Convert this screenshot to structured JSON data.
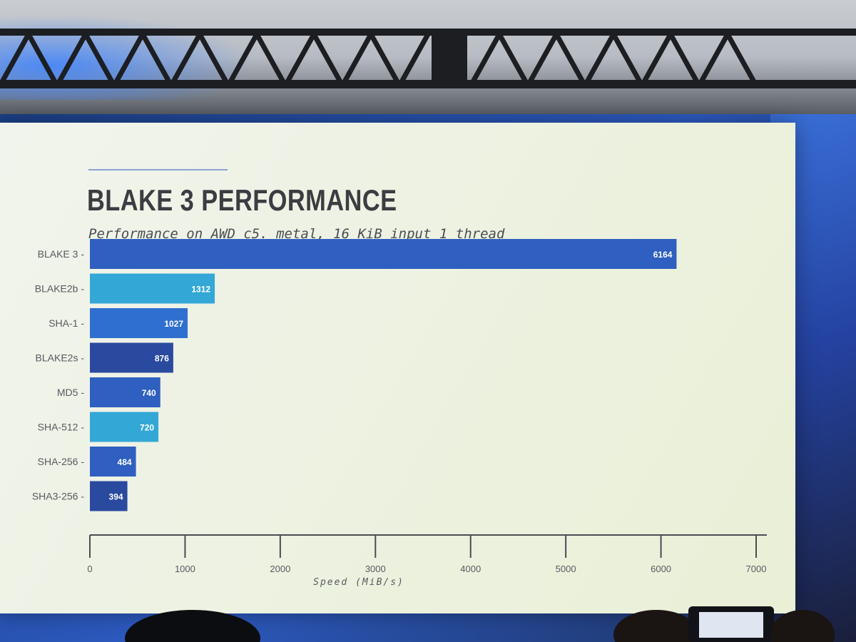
{
  "slide": {
    "title": "BLAKE 3 PERFORMANCE",
    "subtitle": "Performance on AWD c5. metal, 16 KiB input 1 thread"
  },
  "chart_data": {
    "type": "bar",
    "orientation": "horizontal",
    "categories": [
      "BLAKE 3",
      "BLAKE2b",
      "SHA-1",
      "BLAKE2s",
      "MD5",
      "SHA-512",
      "SHA-256",
      "SHA3-256"
    ],
    "values": [
      6164,
      1312,
      1027,
      876,
      740,
      720,
      484,
      394
    ],
    "bar_colors": [
      "#2f5fc0",
      "#33a8d6",
      "#2f6fd0",
      "#2a4aa0",
      "#2f5fc0",
      "#33a8d6",
      "#2f5fc0",
      "#2a4aa0"
    ],
    "xlabel": "Speed (MiB/s)",
    "ylabel": "",
    "xlim": [
      0,
      7000
    ],
    "xticks": [
      0,
      1000,
      2000,
      3000,
      4000,
      5000,
      6000,
      7000
    ],
    "grid": false,
    "data_labels": true
  }
}
